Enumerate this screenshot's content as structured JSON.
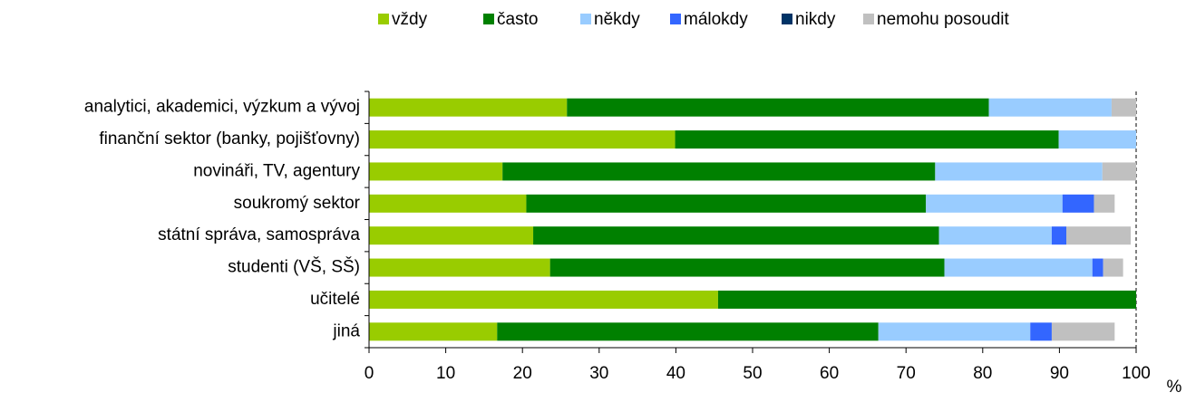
{
  "chart_data": {
    "type": "stacked_barh",
    "x_label": "%",
    "categories": [
      "analytici, akademici, výzkum a vývoj",
      "finanční sektor (banky, pojišťovny)",
      "novináři, TV, agentury",
      "soukromý sektor",
      "státní správa, samospráva",
      "studenti (VŠ, SŠ)",
      "učitelé",
      "jiná"
    ],
    "series": [
      {
        "name": "vždy",
        "color": "#99cc00",
        "values": [
          25.8,
          39.9,
          17.4,
          20.5,
          21.4,
          23.6,
          45.5,
          16.7
        ]
      },
      {
        "name": "často",
        "color": "#008000",
        "values": [
          55,
          50,
          56.4,
          52.1,
          52.9,
          51.4,
          54.5,
          49.7
        ]
      },
      {
        "name": "někdy",
        "color": "#99ccff",
        "values": [
          16,
          10.1,
          21.8,
          17.8,
          14.7,
          19.3,
          0,
          19.8
        ]
      },
      {
        "name": "málokdy",
        "color": "#3366ff",
        "values": [
          0,
          0,
          0,
          4.1,
          1.9,
          1.4,
          0,
          2.8
        ]
      },
      {
        "name": "nikdy",
        "color": "#003366",
        "values": [
          0,
          0,
          0,
          0,
          0,
          0,
          0,
          0
        ]
      },
      {
        "name": "nemohu posoudit",
        "color": "#c0c0c0",
        "values": [
          3.2,
          0,
          4.4,
          2.7,
          8.4,
          2.6,
          0,
          8.2
        ]
      }
    ],
    "xlim": [
      0,
      100
    ],
    "xticks": [
      0,
      10,
      20,
      30,
      40,
      50,
      60,
      70,
      80,
      90,
      100
    ],
    "legend": "top"
  }
}
